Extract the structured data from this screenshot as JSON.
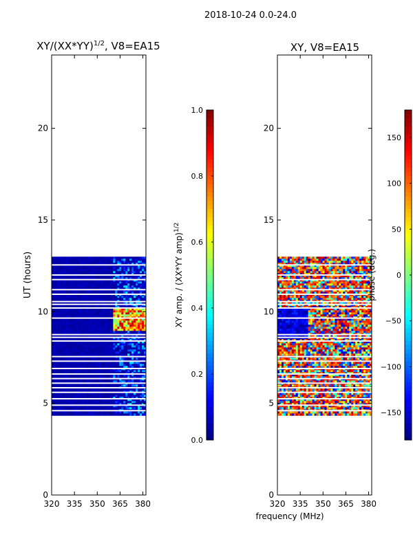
{
  "figure_title": "2018-10-24 0.0-24.0",
  "shared_xlabel": "frequency (MHz)",
  "colors": {
    "jet": [
      "#00007f",
      "#0000ff",
      "#007fff",
      "#00ffff",
      "#7fff7f",
      "#ffff00",
      "#ff7f00",
      "#ff0000",
      "#7f0000"
    ],
    "gap": "#ffffff",
    "frame": "#000000"
  },
  "chart_data": [
    {
      "type": "heatmap",
      "title": "XY/(XX*YY)",
      "title_superscript": "1/2",
      "title_suffix": ", V8=EA15",
      "ylabel": "UT (hours)",
      "xlim": [
        320,
        382
      ],
      "ylim": [
        0,
        24
      ],
      "xticks": [
        320,
        335,
        350,
        365,
        380
      ],
      "yticks": [
        0,
        5,
        10,
        15,
        20
      ],
      "data_range_ut": [
        4.4,
        13.0
      ],
      "colorbar": {
        "label": "XY amp. / (XX*YY amp)",
        "label_superscript": "1/2",
        "range": [
          0.0,
          1.0
        ],
        "ticks": [
          "0.0",
          "0.2",
          "0.4",
          "0.6",
          "0.8",
          "1.0"
        ]
      }
    },
    {
      "type": "heatmap",
      "title": "XY, V8=EA15",
      "ylabel": "",
      "xlim": [
        320,
        382
      ],
      "ylim": [
        0,
        24
      ],
      "xticks": [
        320,
        335,
        350,
        365,
        380
      ],
      "yticks": [
        0,
        5,
        10,
        15,
        20
      ],
      "data_range_ut": [
        4.4,
        13.0
      ],
      "colorbar": {
        "label": "phase (deg.)",
        "range": [
          -180,
          180
        ],
        "ticks": [
          "−150",
          "−100",
          "−50",
          "0",
          "50",
          "100",
          "150"
        ]
      }
    }
  ]
}
